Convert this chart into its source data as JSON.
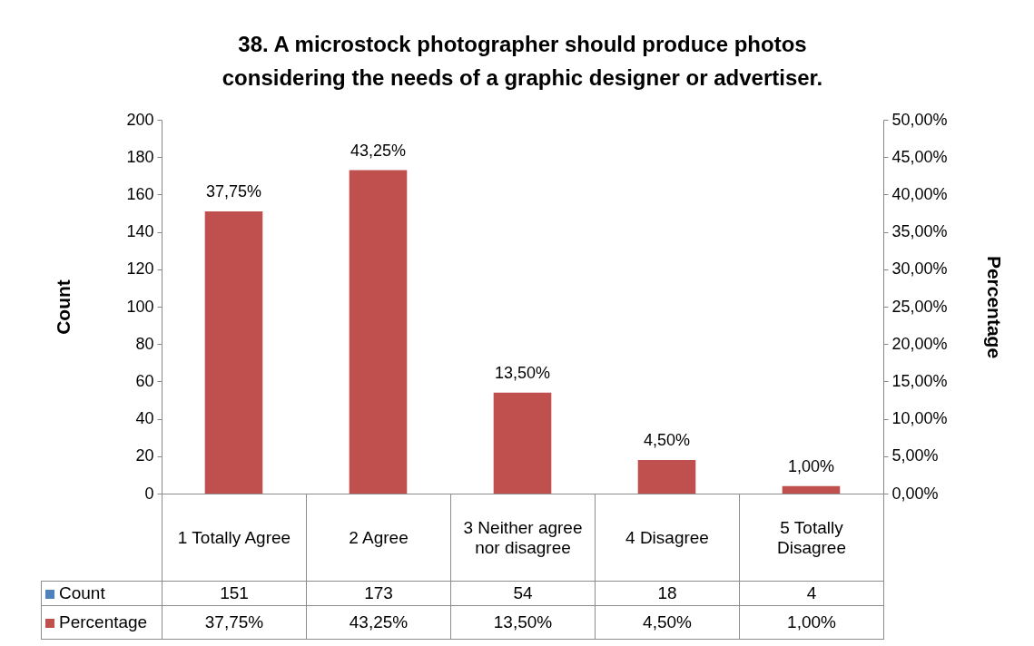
{
  "chart_data": {
    "type": "bar",
    "title": "38. A microstock photographer should produce photos considering the needs of a graphic designer or advertiser.",
    "ylabel": "Count",
    "y2label": "Percentage",
    "categories": [
      "1 Totally Agree",
      "2 Agree",
      "3 Neither agree nor disagree",
      "4 Disagree",
      "5 Totally Disagree"
    ],
    "series": [
      {
        "name": "Count",
        "color": "#4f81bd",
        "values": [
          null,
          null,
          null,
          null,
          null
        ],
        "value_labels": [
          "151",
          "173",
          "54",
          "18",
          "4"
        ]
      },
      {
        "name": "Percentage",
        "color": "#c0504d",
        "axis": "y2",
        "values": [
          37.75,
          43.25,
          13.5,
          4.5,
          1.0
        ],
        "value_labels": [
          "37,75%",
          "43,25%",
          "13,50%",
          "4,50%",
          "1,00%"
        ]
      }
    ],
    "ylim": [
      0,
      200
    ],
    "yticks": [
      0,
      20,
      40,
      60,
      80,
      100,
      120,
      140,
      160,
      180,
      200
    ],
    "y2lim": [
      0,
      50
    ],
    "y2ticks": [
      {
        "value": 0,
        "label": "0,00%"
      },
      {
        "value": 5,
        "label": "5,00%"
      },
      {
        "value": 10,
        "label": "10,00%"
      },
      {
        "value": 15,
        "label": "15,00%"
      },
      {
        "value": 20,
        "label": "20,00%"
      },
      {
        "value": 25,
        "label": "25,00%"
      },
      {
        "value": 30,
        "label": "30,00%"
      },
      {
        "value": 35,
        "label": "35,00%"
      },
      {
        "value": 40,
        "label": "40,00%"
      },
      {
        "value": 45,
        "label": "45,00%"
      },
      {
        "value": 50,
        "label": "50,00%"
      }
    ],
    "legend": "bottom",
    "grid": false
  }
}
